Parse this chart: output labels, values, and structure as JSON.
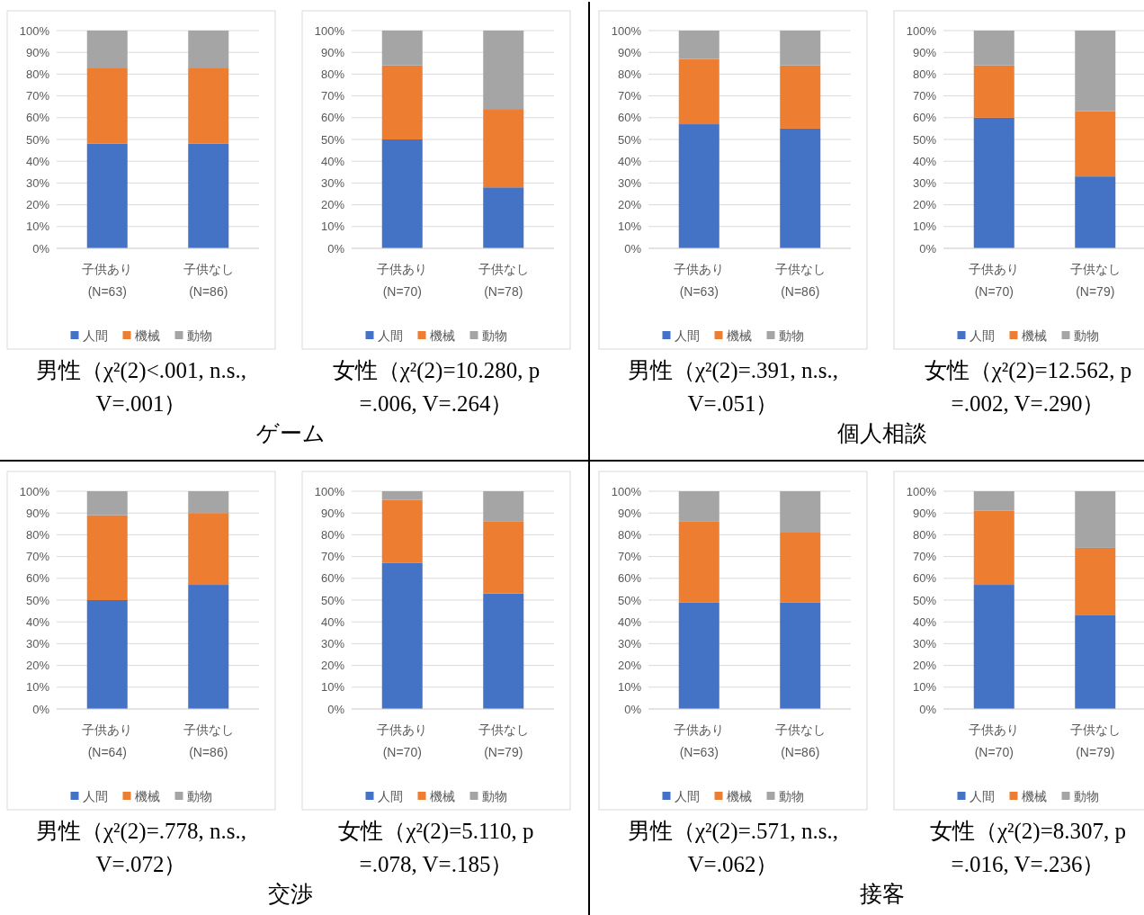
{
  "chart_data": [
    {
      "type": "bar",
      "stacked": true,
      "title": "男性（χ²(2)<.001, n.s.,\nV=.001）",
      "annotations": [
        "ゲーム"
      ],
      "categories": [
        "子供あり\n(N=63)",
        "子供なし\n(N=86)"
      ],
      "ylim": [
        0,
        100
      ],
      "yticks": [
        {
          "value": 0,
          "label": "0%"
        },
        {
          "value": 10,
          "label": "10%"
        },
        {
          "value": 20,
          "label": "20%"
        },
        {
          "value": 30,
          "label": "30%"
        },
        {
          "value": 40,
          "label": "40%"
        },
        {
          "value": 50,
          "label": "50%"
        },
        {
          "value": 60,
          "label": "60%"
        },
        {
          "value": 70,
          "label": "70%"
        },
        {
          "value": 80,
          "label": "80%"
        },
        {
          "value": 90,
          "label": "90%"
        },
        {
          "value": 100,
          "label": "100%"
        }
      ],
      "grid": "y",
      "legend": "bottom",
      "series": [
        {
          "name": "人間",
          "color": "#4472c4",
          "values": [
            48,
            48
          ]
        },
        {
          "name": "機械",
          "color": "#ed7d31",
          "values": [
            35,
            35
          ]
        },
        {
          "name": "動物",
          "color": "#a5a5a5",
          "values": [
            17,
            17
          ]
        }
      ]
    },
    {
      "type": "bar",
      "stacked": true,
      "title": "女性（χ²(2)=10.280, p\n=.006, V=.264）",
      "categories": [
        "子供あり\n(N=70)",
        "子供なし\n(N=78)"
      ],
      "ylim": [
        0,
        100
      ],
      "yticks": [
        {
          "value": 0,
          "label": "0%"
        },
        {
          "value": 10,
          "label": "10%"
        },
        {
          "value": 20,
          "label": "20%"
        },
        {
          "value": 30,
          "label": "30%"
        },
        {
          "value": 40,
          "label": "40%"
        },
        {
          "value": 50,
          "label": "50%"
        },
        {
          "value": 60,
          "label": "60%"
        },
        {
          "value": 70,
          "label": "70%"
        },
        {
          "value": 80,
          "label": "80%"
        },
        {
          "value": 90,
          "label": "90%"
        },
        {
          "value": 100,
          "label": "100%"
        }
      ],
      "grid": "y",
      "legend": "bottom",
      "series": [
        {
          "name": "人間",
          "color": "#4472c4",
          "values": [
            50,
            28
          ]
        },
        {
          "name": "機械",
          "color": "#ed7d31",
          "values": [
            34,
            36
          ]
        },
        {
          "name": "動物",
          "color": "#a5a5a5",
          "values": [
            16,
            36
          ]
        }
      ]
    },
    {
      "type": "bar",
      "stacked": true,
      "title": "男性（χ²(2)=.391, n.s.,\nV=.051）",
      "annotations": [
        "個人相談"
      ],
      "categories": [
        "子供あり\n(N=63)",
        "子供なし\n(N=86)"
      ],
      "ylim": [
        0,
        100
      ],
      "yticks": [
        {
          "value": 0,
          "label": "0%"
        },
        {
          "value": 10,
          "label": "10%"
        },
        {
          "value": 20,
          "label": "20%"
        },
        {
          "value": 30,
          "label": "30%"
        },
        {
          "value": 40,
          "label": "40%"
        },
        {
          "value": 50,
          "label": "50%"
        },
        {
          "value": 60,
          "label": "60%"
        },
        {
          "value": 70,
          "label": "70%"
        },
        {
          "value": 80,
          "label": "80%"
        },
        {
          "value": 90,
          "label": "90%"
        },
        {
          "value": 100,
          "label": "100%"
        }
      ],
      "grid": "y",
      "legend": "bottom",
      "series": [
        {
          "name": "人間",
          "color": "#4472c4",
          "values": [
            57,
            55
          ]
        },
        {
          "name": "機械",
          "color": "#ed7d31",
          "values": [
            30,
            29
          ]
        },
        {
          "name": "動物",
          "color": "#a5a5a5",
          "values": [
            13,
            16
          ]
        }
      ]
    },
    {
      "type": "bar",
      "stacked": true,
      "title": "女性（χ²(2)=12.562, p\n=.002, V=.290）",
      "categories": [
        "子供あり\n(N=70)",
        "子供なし\n(N=79)"
      ],
      "ylim": [
        0,
        100
      ],
      "yticks": [
        {
          "value": 0,
          "label": "0%"
        },
        {
          "value": 10,
          "label": "10%"
        },
        {
          "value": 20,
          "label": "20%"
        },
        {
          "value": 30,
          "label": "30%"
        },
        {
          "value": 40,
          "label": "40%"
        },
        {
          "value": 50,
          "label": "50%"
        },
        {
          "value": 60,
          "label": "60%"
        },
        {
          "value": 70,
          "label": "70%"
        },
        {
          "value": 80,
          "label": "80%"
        },
        {
          "value": 90,
          "label": "90%"
        },
        {
          "value": 100,
          "label": "100%"
        }
      ],
      "grid": "y",
      "legend": "bottom",
      "series": [
        {
          "name": "人間",
          "color": "#4472c4",
          "values": [
            60,
            33
          ]
        },
        {
          "name": "機械",
          "color": "#ed7d31",
          "values": [
            24,
            30
          ]
        },
        {
          "name": "動物",
          "color": "#a5a5a5",
          "values": [
            16,
            37
          ]
        }
      ]
    },
    {
      "type": "bar",
      "stacked": true,
      "title": "男性（χ²(2)=.778, n.s.,\nV=.072）",
      "annotations": [
        "交渉"
      ],
      "categories": [
        "子供あり\n(N=64)",
        "子供なし\n(N=86)"
      ],
      "ylim": [
        0,
        100
      ],
      "yticks": [
        {
          "value": 0,
          "label": "0%"
        },
        {
          "value": 10,
          "label": "10%"
        },
        {
          "value": 20,
          "label": "20%"
        },
        {
          "value": 30,
          "label": "30%"
        },
        {
          "value": 40,
          "label": "40%"
        },
        {
          "value": 50,
          "label": "50%"
        },
        {
          "value": 60,
          "label": "60%"
        },
        {
          "value": 70,
          "label": "70%"
        },
        {
          "value": 80,
          "label": "80%"
        },
        {
          "value": 90,
          "label": "90%"
        },
        {
          "value": 100,
          "label": "100%"
        }
      ],
      "grid": "y",
      "legend": "bottom",
      "series": [
        {
          "name": "人間",
          "color": "#4472c4",
          "values": [
            50,
            57
          ]
        },
        {
          "name": "機械",
          "color": "#ed7d31",
          "values": [
            39,
            33
          ]
        },
        {
          "name": "動物",
          "color": "#a5a5a5",
          "values": [
            11,
            10
          ]
        }
      ]
    },
    {
      "type": "bar",
      "stacked": true,
      "title": "女性（χ²(2)=5.110, p\n=.078, V=.185）",
      "categories": [
        "子供あり\n(N=70)",
        "子供なし\n(N=79)"
      ],
      "ylim": [
        0,
        100
      ],
      "yticks": [
        {
          "value": 0,
          "label": "0%"
        },
        {
          "value": 10,
          "label": "10%"
        },
        {
          "value": 20,
          "label": "20%"
        },
        {
          "value": 30,
          "label": "30%"
        },
        {
          "value": 40,
          "label": "40%"
        },
        {
          "value": 50,
          "label": "50%"
        },
        {
          "value": 60,
          "label": "60%"
        },
        {
          "value": 70,
          "label": "70%"
        },
        {
          "value": 80,
          "label": "80%"
        },
        {
          "value": 90,
          "label": "90%"
        },
        {
          "value": 100,
          "label": "100%"
        }
      ],
      "grid": "y",
      "legend": "bottom",
      "series": [
        {
          "name": "人間",
          "color": "#4472c4",
          "values": [
            67,
            53
          ]
        },
        {
          "name": "機械",
          "color": "#ed7d31",
          "values": [
            29,
            33
          ]
        },
        {
          "name": "動物",
          "color": "#a5a5a5",
          "values": [
            4,
            14
          ]
        }
      ]
    },
    {
      "type": "bar",
      "stacked": true,
      "title": "男性（χ²(2)=.571, n.s.,\nV=.062）",
      "annotations": [
        "接客"
      ],
      "categories": [
        "子供あり\n(N=63)",
        "子供なし\n(N=86)"
      ],
      "ylim": [
        0,
        100
      ],
      "yticks": [
        {
          "value": 0,
          "label": "0%"
        },
        {
          "value": 10,
          "label": "10%"
        },
        {
          "value": 20,
          "label": "20%"
        },
        {
          "value": 30,
          "label": "30%"
        },
        {
          "value": 40,
          "label": "40%"
        },
        {
          "value": 50,
          "label": "50%"
        },
        {
          "value": 60,
          "label": "60%"
        },
        {
          "value": 70,
          "label": "70%"
        },
        {
          "value": 80,
          "label": "80%"
        },
        {
          "value": 90,
          "label": "90%"
        },
        {
          "value": 100,
          "label": "100%"
        }
      ],
      "grid": "y",
      "legend": "bottom",
      "series": [
        {
          "name": "人間",
          "color": "#4472c4",
          "values": [
            49,
            49
          ]
        },
        {
          "name": "機械",
          "color": "#ed7d31",
          "values": [
            37,
            32
          ]
        },
        {
          "name": "動物",
          "color": "#a5a5a5",
          "values": [
            14,
            19
          ]
        }
      ]
    },
    {
      "type": "bar",
      "stacked": true,
      "title": "女性（χ²(2)=8.307, p\n=.016, V=.236）",
      "categories": [
        "子供あり\n(N=70)",
        "子供なし\n(N=79)"
      ],
      "ylim": [
        0,
        100
      ],
      "yticks": [
        {
          "value": 0,
          "label": "0%"
        },
        {
          "value": 10,
          "label": "10%"
        },
        {
          "value": 20,
          "label": "20%"
        },
        {
          "value": 30,
          "label": "30%"
        },
        {
          "value": 40,
          "label": "40%"
        },
        {
          "value": 50,
          "label": "50%"
        },
        {
          "value": 60,
          "label": "60%"
        },
        {
          "value": 70,
          "label": "70%"
        },
        {
          "value": 80,
          "label": "80%"
        },
        {
          "value": 90,
          "label": "90%"
        },
        {
          "value": 100,
          "label": "100%"
        }
      ],
      "grid": "y",
      "legend": "bottom",
      "series": [
        {
          "name": "人間",
          "color": "#4472c4",
          "values": [
            57,
            43
          ]
        },
        {
          "name": "機械",
          "color": "#ed7d31",
          "values": [
            34,
            31
          ]
        },
        {
          "name": "動物",
          "color": "#a5a5a5",
          "values": [
            9,
            26
          ]
        }
      ]
    }
  ]
}
